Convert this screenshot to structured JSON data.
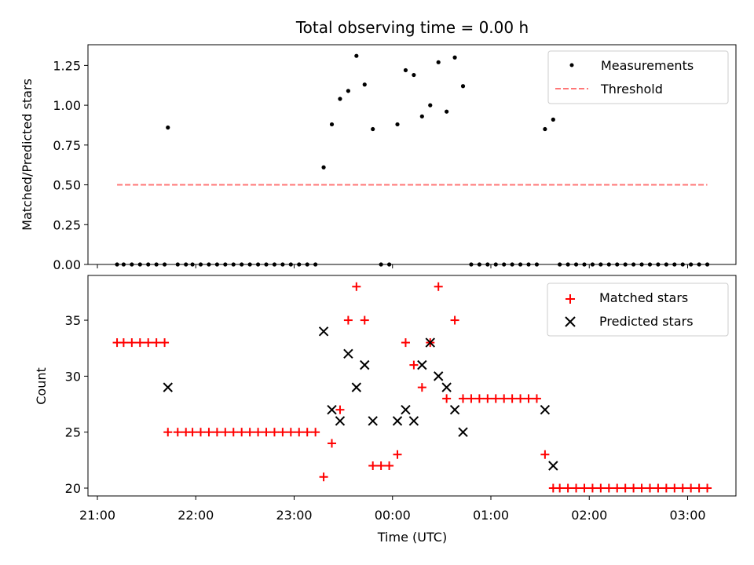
{
  "chart_data": [
    {
      "type": "scatter",
      "title": "Total observing time = 0.00 h",
      "xlabel": "",
      "ylabel": "Matched/Predicted stars",
      "ylim": [
        0,
        1.38
      ],
      "yticks": [
        0.0,
        0.25,
        0.5,
        0.75,
        1.0,
        1.25
      ],
      "ytick_labels": [
        "0.00",
        "0.25",
        "0.50",
        "0.75",
        "1.00",
        "1.25"
      ],
      "grid": false,
      "legend_position": "top-right",
      "series": [
        {
          "name": "Measurements",
          "marker": "dot",
          "color": "#000000",
          "points": [
            [
              "21:12",
              0.0
            ],
            [
              "21:16",
              0.0
            ],
            [
              "21:21",
              0.0
            ],
            [
              "21:26",
              0.0
            ],
            [
              "21:31",
              0.0
            ],
            [
              "21:36",
              0.0
            ],
            [
              "21:41",
              0.0
            ],
            [
              "21:43",
              0.86
            ],
            [
              "21:49",
              0.0
            ],
            [
              "21:54",
              0.0
            ],
            [
              "21:58",
              0.0
            ],
            [
              "22:03",
              0.0
            ],
            [
              "22:08",
              0.0
            ],
            [
              "22:13",
              0.0
            ],
            [
              "22:18",
              0.0
            ],
            [
              "22:23",
              0.0
            ],
            [
              "22:28",
              0.0
            ],
            [
              "22:33",
              0.0
            ],
            [
              "22:38",
              0.0
            ],
            [
              "22:43",
              0.0
            ],
            [
              "22:48",
              0.0
            ],
            [
              "22:53",
              0.0
            ],
            [
              "22:58",
              0.0
            ],
            [
              "23:03",
              0.0
            ],
            [
              "23:08",
              0.0
            ],
            [
              "23:13",
              0.0
            ],
            [
              "23:18",
              0.61
            ],
            [
              "23:23",
              0.88
            ],
            [
              "23:28",
              1.04
            ],
            [
              "23:33",
              1.09
            ],
            [
              "23:38",
              1.31
            ],
            [
              "23:43",
              1.13
            ],
            [
              "23:48",
              0.85
            ],
            [
              "23:53",
              0.0
            ],
            [
              "23:58",
              0.0
            ],
            [
              "00:03",
              0.88
            ],
            [
              "00:08",
              1.22
            ],
            [
              "00:13",
              1.19
            ],
            [
              "00:18",
              0.93
            ],
            [
              "00:23",
              1.0
            ],
            [
              "00:28",
              1.27
            ],
            [
              "00:33",
              0.96
            ],
            [
              "00:38",
              1.3
            ],
            [
              "00:43",
              1.12
            ],
            [
              "00:48",
              0.0
            ],
            [
              "00:53",
              0.0
            ],
            [
              "00:58",
              0.0
            ],
            [
              "01:03",
              0.0
            ],
            [
              "01:08",
              0.0
            ],
            [
              "01:13",
              0.0
            ],
            [
              "01:18",
              0.0
            ],
            [
              "01:23",
              0.0
            ],
            [
              "01:28",
              0.0
            ],
            [
              "01:33",
              0.85
            ],
            [
              "01:38",
              0.91
            ],
            [
              "01:42",
              0.0
            ],
            [
              "01:47",
              0.0
            ],
            [
              "01:52",
              0.0
            ],
            [
              "01:57",
              0.0
            ],
            [
              "02:02",
              0.0
            ],
            [
              "02:07",
              0.0
            ],
            [
              "02:12",
              0.0
            ],
            [
              "02:17",
              0.0
            ],
            [
              "02:22",
              0.0
            ],
            [
              "02:27",
              0.0
            ],
            [
              "02:32",
              0.0
            ],
            [
              "02:37",
              0.0
            ],
            [
              "02:42",
              0.0
            ],
            [
              "02:47",
              0.0
            ],
            [
              "02:52",
              0.0
            ],
            [
              "02:57",
              0.0
            ],
            [
              "03:02",
              0.0
            ],
            [
              "03:07",
              0.0
            ],
            [
              "03:12",
              0.0
            ]
          ]
        },
        {
          "name": "Threshold",
          "marker": "dashed-line",
          "color": "#ff7777",
          "points": [
            [
              "21:12",
              0.5
            ],
            [
              "03:12",
              0.5
            ]
          ]
        }
      ]
    },
    {
      "type": "scatter",
      "title": "",
      "xlabel": "Time (UTC)",
      "ylabel": "Count",
      "ylim": [
        19.3,
        39.0
      ],
      "yticks": [
        20,
        25,
        30,
        35
      ],
      "ytick_labels": [
        "20",
        "25",
        "30",
        "35"
      ],
      "xticks": [
        "21:00",
        "22:00",
        "23:00",
        "00:00",
        "01:00",
        "02:00",
        "03:00"
      ],
      "grid": false,
      "legend_position": "top-right",
      "series": [
        {
          "name": "Matched stars",
          "marker": "plus",
          "color": "#ff0000",
          "points": [
            [
              "21:12",
              33
            ],
            [
              "21:16",
              33
            ],
            [
              "21:21",
              33
            ],
            [
              "21:26",
              33
            ],
            [
              "21:31",
              33
            ],
            [
              "21:36",
              33
            ],
            [
              "21:41",
              33
            ],
            [
              "21:43",
              25
            ],
            [
              "21:49",
              25
            ],
            [
              "21:54",
              25
            ],
            [
              "21:58",
              25
            ],
            [
              "22:03",
              25
            ],
            [
              "22:08",
              25
            ],
            [
              "22:13",
              25
            ],
            [
              "22:18",
              25
            ],
            [
              "22:23",
              25
            ],
            [
              "22:28",
              25
            ],
            [
              "22:33",
              25
            ],
            [
              "22:38",
              25
            ],
            [
              "22:43",
              25
            ],
            [
              "22:48",
              25
            ],
            [
              "22:53",
              25
            ],
            [
              "22:58",
              25
            ],
            [
              "23:03",
              25
            ],
            [
              "23:08",
              25
            ],
            [
              "23:13",
              25
            ],
            [
              "23:18",
              21
            ],
            [
              "23:23",
              24
            ],
            [
              "23:28",
              27
            ],
            [
              "23:33",
              35
            ],
            [
              "23:38",
              38
            ],
            [
              "23:43",
              35
            ],
            [
              "23:48",
              22
            ],
            [
              "23:53",
              22
            ],
            [
              "23:58",
              22
            ],
            [
              "00:03",
              23
            ],
            [
              "00:08",
              33
            ],
            [
              "00:13",
              31
            ],
            [
              "00:18",
              29
            ],
            [
              "00:23",
              33
            ],
            [
              "00:28",
              38
            ],
            [
              "00:33",
              28
            ],
            [
              "00:38",
              35
            ],
            [
              "00:43",
              28
            ],
            [
              "00:48",
              28
            ],
            [
              "00:53",
              28
            ],
            [
              "00:58",
              28
            ],
            [
              "01:03",
              28
            ],
            [
              "01:08",
              28
            ],
            [
              "01:13",
              28
            ],
            [
              "01:18",
              28
            ],
            [
              "01:23",
              28
            ],
            [
              "01:28",
              28
            ],
            [
              "01:33",
              23
            ],
            [
              "01:38",
              20
            ],
            [
              "01:42",
              20
            ],
            [
              "01:47",
              20
            ],
            [
              "01:52",
              20
            ],
            [
              "01:57",
              20
            ],
            [
              "02:02",
              20
            ],
            [
              "02:07",
              20
            ],
            [
              "02:12",
              20
            ],
            [
              "02:17",
              20
            ],
            [
              "02:22",
              20
            ],
            [
              "02:27",
              20
            ],
            [
              "02:32",
              20
            ],
            [
              "02:37",
              20
            ],
            [
              "02:42",
              20
            ],
            [
              "02:47",
              20
            ],
            [
              "02:52",
              20
            ],
            [
              "02:57",
              20
            ],
            [
              "03:02",
              20
            ],
            [
              "03:07",
              20
            ],
            [
              "03:12",
              20
            ]
          ]
        },
        {
          "name": "Predicted stars",
          "marker": "x",
          "color": "#000000",
          "points": [
            [
              "21:43",
              29
            ],
            [
              "23:18",
              34
            ],
            [
              "23:23",
              27
            ],
            [
              "23:28",
              26
            ],
            [
              "23:33",
              32
            ],
            [
              "23:38",
              29
            ],
            [
              "23:43",
              31
            ],
            [
              "23:48",
              26
            ],
            [
              "00:03",
              26
            ],
            [
              "00:08",
              27
            ],
            [
              "00:13",
              26
            ],
            [
              "00:18",
              31
            ],
            [
              "00:23",
              33
            ],
            [
              "00:28",
              30
            ],
            [
              "00:33",
              29
            ],
            [
              "00:38",
              27
            ],
            [
              "00:43",
              25
            ],
            [
              "01:33",
              27
            ],
            [
              "01:38",
              22
            ]
          ]
        }
      ]
    }
  ]
}
